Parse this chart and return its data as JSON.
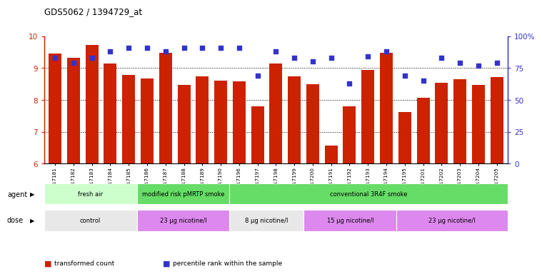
{
  "title": "GDS5062 / 1394729_at",
  "samples": [
    "GSM1217181",
    "GSM1217182",
    "GSM1217183",
    "GSM1217184",
    "GSM1217185",
    "GSM1217186",
    "GSM1217187",
    "GSM1217188",
    "GSM1217189",
    "GSM1217190",
    "GSM1217196",
    "GSM1217197",
    "GSM1217198",
    "GSM1217199",
    "GSM1217200",
    "GSM1217191",
    "GSM1217192",
    "GSM1217193",
    "GSM1217194",
    "GSM1217195",
    "GSM1217201",
    "GSM1217202",
    "GSM1217203",
    "GSM1217204",
    "GSM1217205"
  ],
  "bar_values": [
    9.45,
    9.33,
    9.72,
    9.15,
    8.78,
    8.68,
    9.48,
    8.47,
    8.73,
    8.6,
    8.58,
    7.8,
    9.15,
    8.73,
    8.5,
    6.58,
    7.8,
    8.95,
    9.48,
    7.62,
    8.08,
    8.53,
    8.65,
    8.48,
    8.72
  ],
  "dot_values": [
    83,
    79,
    83,
    88,
    91,
    91,
    88,
    91,
    91,
    91,
    91,
    69,
    88,
    83,
    80,
    83,
    63,
    84,
    88,
    69,
    65,
    83,
    79,
    77,
    79
  ],
  "ylim_left": [
    6,
    10
  ],
  "ylim_right": [
    0,
    100
  ],
  "yticks_left": [
    6,
    7,
    8,
    9,
    10
  ],
  "yticks_right": [
    0,
    25,
    50,
    75,
    100
  ],
  "ytick_right_labels": [
    "0",
    "25",
    "50",
    "75",
    "100%"
  ],
  "bar_color": "#cc2200",
  "dot_color": "#3333cc",
  "grid_lines": [
    7,
    8,
    9
  ],
  "agent_groups": [
    {
      "label": "fresh air",
      "start": 0,
      "end": 5,
      "color": "#ccffcc"
    },
    {
      "label": "modified risk pMRTP smoke",
      "start": 5,
      "end": 10,
      "color": "#66dd66"
    },
    {
      "label": "conventional 3R4F smoke",
      "start": 10,
      "end": 25,
      "color": "#66dd66"
    }
  ],
  "dose_groups": [
    {
      "label": "control",
      "start": 0,
      "end": 5,
      "color": "#e8e8e8"
    },
    {
      "label": "23 μg nicotine/l",
      "start": 5,
      "end": 10,
      "color": "#dd88ee"
    },
    {
      "label": "8 μg nicotine/l",
      "start": 10,
      "end": 14,
      "color": "#e8e8e8"
    },
    {
      "label": "15 μg nicotine/l",
      "start": 14,
      "end": 19,
      "color": "#dd88ee"
    },
    {
      "label": "23 μg nicotine/l",
      "start": 19,
      "end": 25,
      "color": "#dd88ee"
    }
  ],
  "legend_items": [
    {
      "label": "transformed count",
      "color": "#cc2200"
    },
    {
      "label": "percentile rank within the sample",
      "color": "#3333cc"
    }
  ],
  "fig_width": 7.38,
  "fig_height": 3.93,
  "dpi": 100
}
